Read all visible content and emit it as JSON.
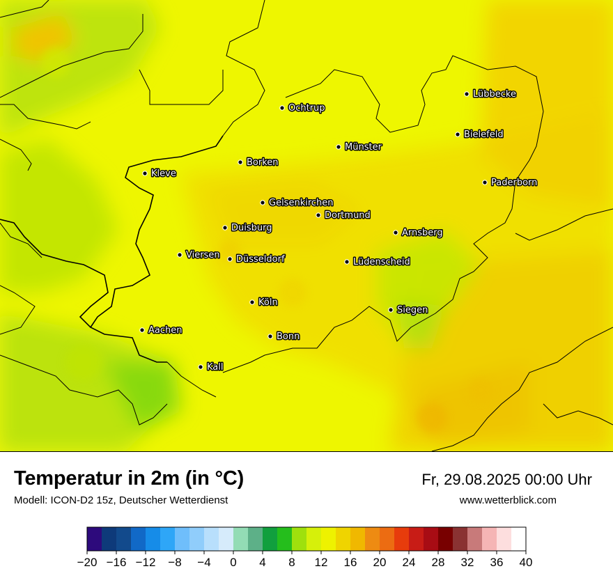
{
  "map": {
    "cities": [
      {
        "name": "Ochtrup"
      },
      {
        "name": "Lübbecke"
      },
      {
        "name": "Bielefeld"
      },
      {
        "name": "Münster"
      },
      {
        "name": "Borken"
      },
      {
        "name": "Kleve"
      },
      {
        "name": "Paderborn"
      },
      {
        "name": "Gelsenkirchen"
      },
      {
        "name": "Dortmund"
      },
      {
        "name": "Duisburg"
      },
      {
        "name": "Arnsberg"
      },
      {
        "name": "Viersen"
      },
      {
        "name": "Düsseldorf"
      },
      {
        "name": "Lüdenscheid"
      },
      {
        "name": "Köln"
      },
      {
        "name": "Siegen"
      },
      {
        "name": "Aachen"
      },
      {
        "name": "Bonn"
      },
      {
        "name": "Kall"
      }
    ]
  },
  "footer": {
    "title": "Temperatur in 2m (in °C)",
    "subtitle": "Modell: ICON-D2 15z, Deutscher Wetterdienst",
    "datetime": "Fr, 29.08.2025 00:00 Uhr",
    "website": "www.wetterblick.com"
  },
  "legend": {
    "min": -20,
    "max": 40,
    "step": 2,
    "tick_labels": [
      "−20",
      "−16",
      "−12",
      "−8",
      "−4",
      "0",
      "4",
      "8",
      "12",
      "16",
      "20",
      "24",
      "28",
      "32",
      "36",
      "40"
    ],
    "colors": [
      "#2d0a7c",
      "#0e3a7a",
      "#124a8c",
      "#1169c7",
      "#168ce8",
      "#2ea6f7",
      "#6fbefb",
      "#90cdfb",
      "#b8dffc",
      "#d6ebfb",
      "#93dcb5",
      "#5db088",
      "#119f3e",
      "#25be1c",
      "#9fe00d",
      "#d6f00a",
      "#eef200",
      "#efd400",
      "#f0b800",
      "#ee8b12",
      "#ec6c12",
      "#e73c0c",
      "#c81c16",
      "#a80c14",
      "#780000",
      "#8a3232",
      "#c87a7a",
      "#f5b5b5",
      "#fddede",
      "#ffffff"
    ]
  }
}
